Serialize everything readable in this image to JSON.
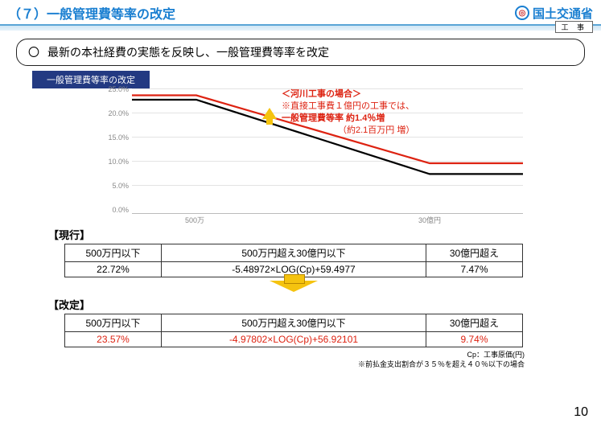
{
  "header": {
    "title": "（７）一般管理費等率の改定",
    "ministry": "国土交通省",
    "tag": "工 事"
  },
  "description": "最新の本社経費の実態を反映し、一般管理費等率を改定",
  "pill": "一般管理費等率の改定",
  "chart": {
    "type": "line",
    "y_ticks": [
      "25.0%",
      "20.0%",
      "15.0%",
      "10.0%",
      "5.0%",
      "0.0%"
    ],
    "ylim": [
      0,
      25
    ],
    "x_labels": [
      "500万",
      "30億円"
    ],
    "grid_color": "#e3e3e3",
    "axis_color": "#bbbbbb",
    "tick_fontsize": 9,
    "series": [
      {
        "name": "改定",
        "color": "#d21",
        "width": 2.2,
        "points": [
          [
            0,
            23.6
          ],
          [
            80,
            23.6
          ],
          [
            370,
            9.7
          ],
          [
            486,
            9.7
          ]
        ]
      },
      {
        "name": "現行",
        "color": "#000",
        "width": 2.2,
        "points": [
          [
            0,
            22.7
          ],
          [
            80,
            22.7
          ],
          [
            370,
            7.5
          ],
          [
            486,
            7.5
          ]
        ]
      }
    ]
  },
  "annotation": {
    "line1": "＜河川工事の場合＞",
    "line2": "※直接工事費１億円の工事では、",
    "line3": "一般管理費等率 約1.4％増",
    "line4": "（約2.1百万円 増）"
  },
  "current": {
    "label": "【現行】",
    "headers": [
      "500万円以下",
      "500万円超え30億円以下",
      "30億円超え"
    ],
    "values": [
      "22.72%",
      "-5.48972×LOG(Cp)+59.4977",
      "7.47%"
    ]
  },
  "revised": {
    "label": "【改定】",
    "headers": [
      "500万円以下",
      "500万円超え30億円以下",
      "30億円超え"
    ],
    "values": [
      "23.57%",
      "-4.97802×LOG(Cp)+56.92101",
      "9.74%"
    ]
  },
  "footnote1": "Cp：工事原価(円)",
  "footnote2": "※前払金支出割合が３５％を超え４０％以下の場合",
  "page": "10"
}
